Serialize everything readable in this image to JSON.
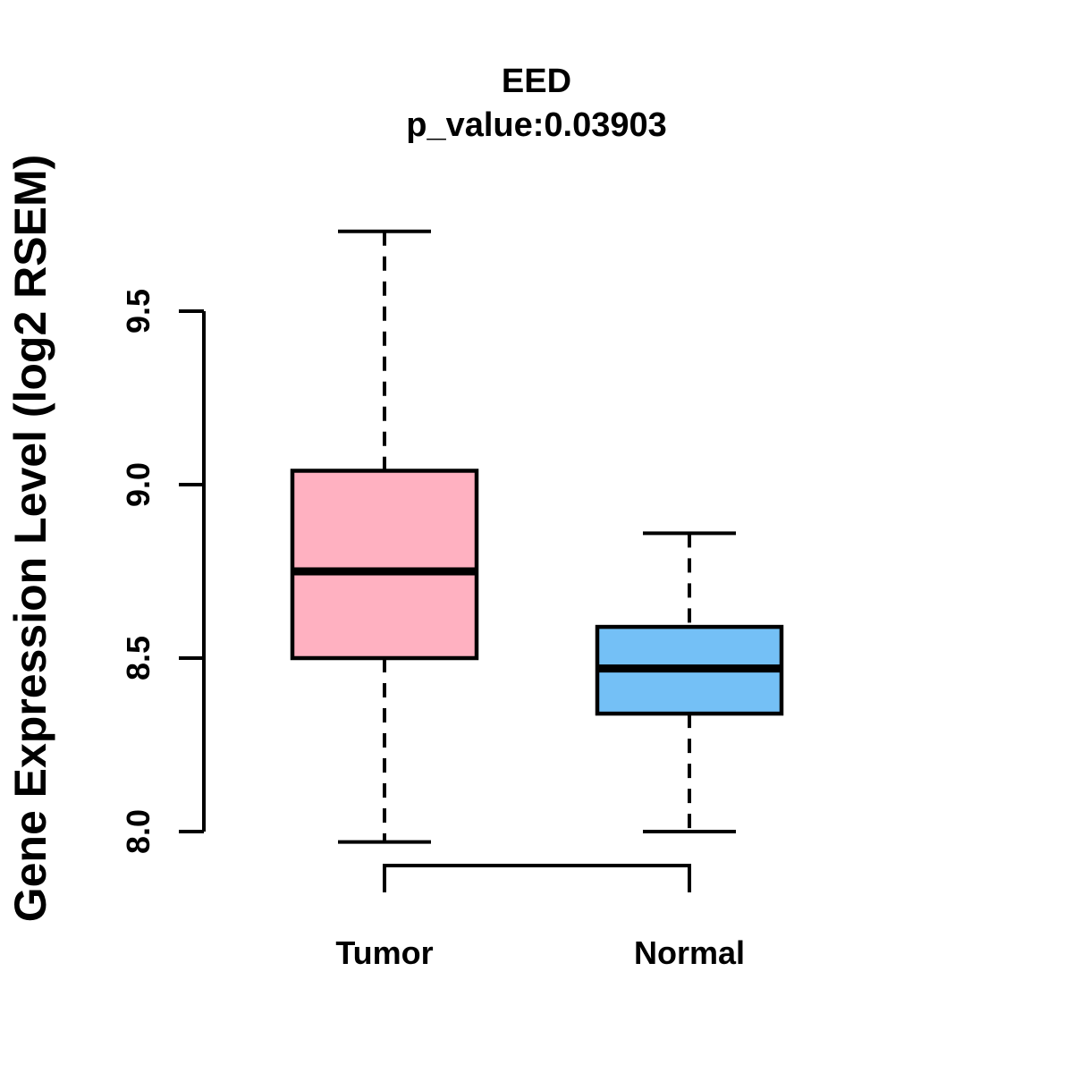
{
  "chart_data": {
    "type": "box",
    "title": "EED",
    "subtitle": "p_value:0.03903",
    "ylabel": "Gene Expression Level (log2 RSEM)",
    "xlabel": "",
    "categories": [
      "Tumor",
      "Normal"
    ],
    "series": [
      {
        "name": "Tumor",
        "color": "#FFB1C1",
        "whisker_low": 7.97,
        "q1": 8.5,
        "median": 8.75,
        "q3": 9.04,
        "whisker_high": 9.73
      },
      {
        "name": "Normal",
        "color": "#74C0F6",
        "whisker_low": 8.0,
        "q1": 8.34,
        "median": 8.47,
        "q3": 8.59,
        "whisker_high": 8.86
      }
    ],
    "yticks": [
      8.0,
      8.5,
      9.0,
      9.5
    ],
    "ytick_labels": [
      "8.0",
      "8.5",
      "9.0",
      "9.5"
    ],
    "axis_range": [
      8.0,
      9.5
    ],
    "ylim": [
      7.9,
      9.8
    ],
    "grid": false,
    "legend": "none",
    "stroke_color": "#000000",
    "background_color": "#FFFFFF"
  }
}
